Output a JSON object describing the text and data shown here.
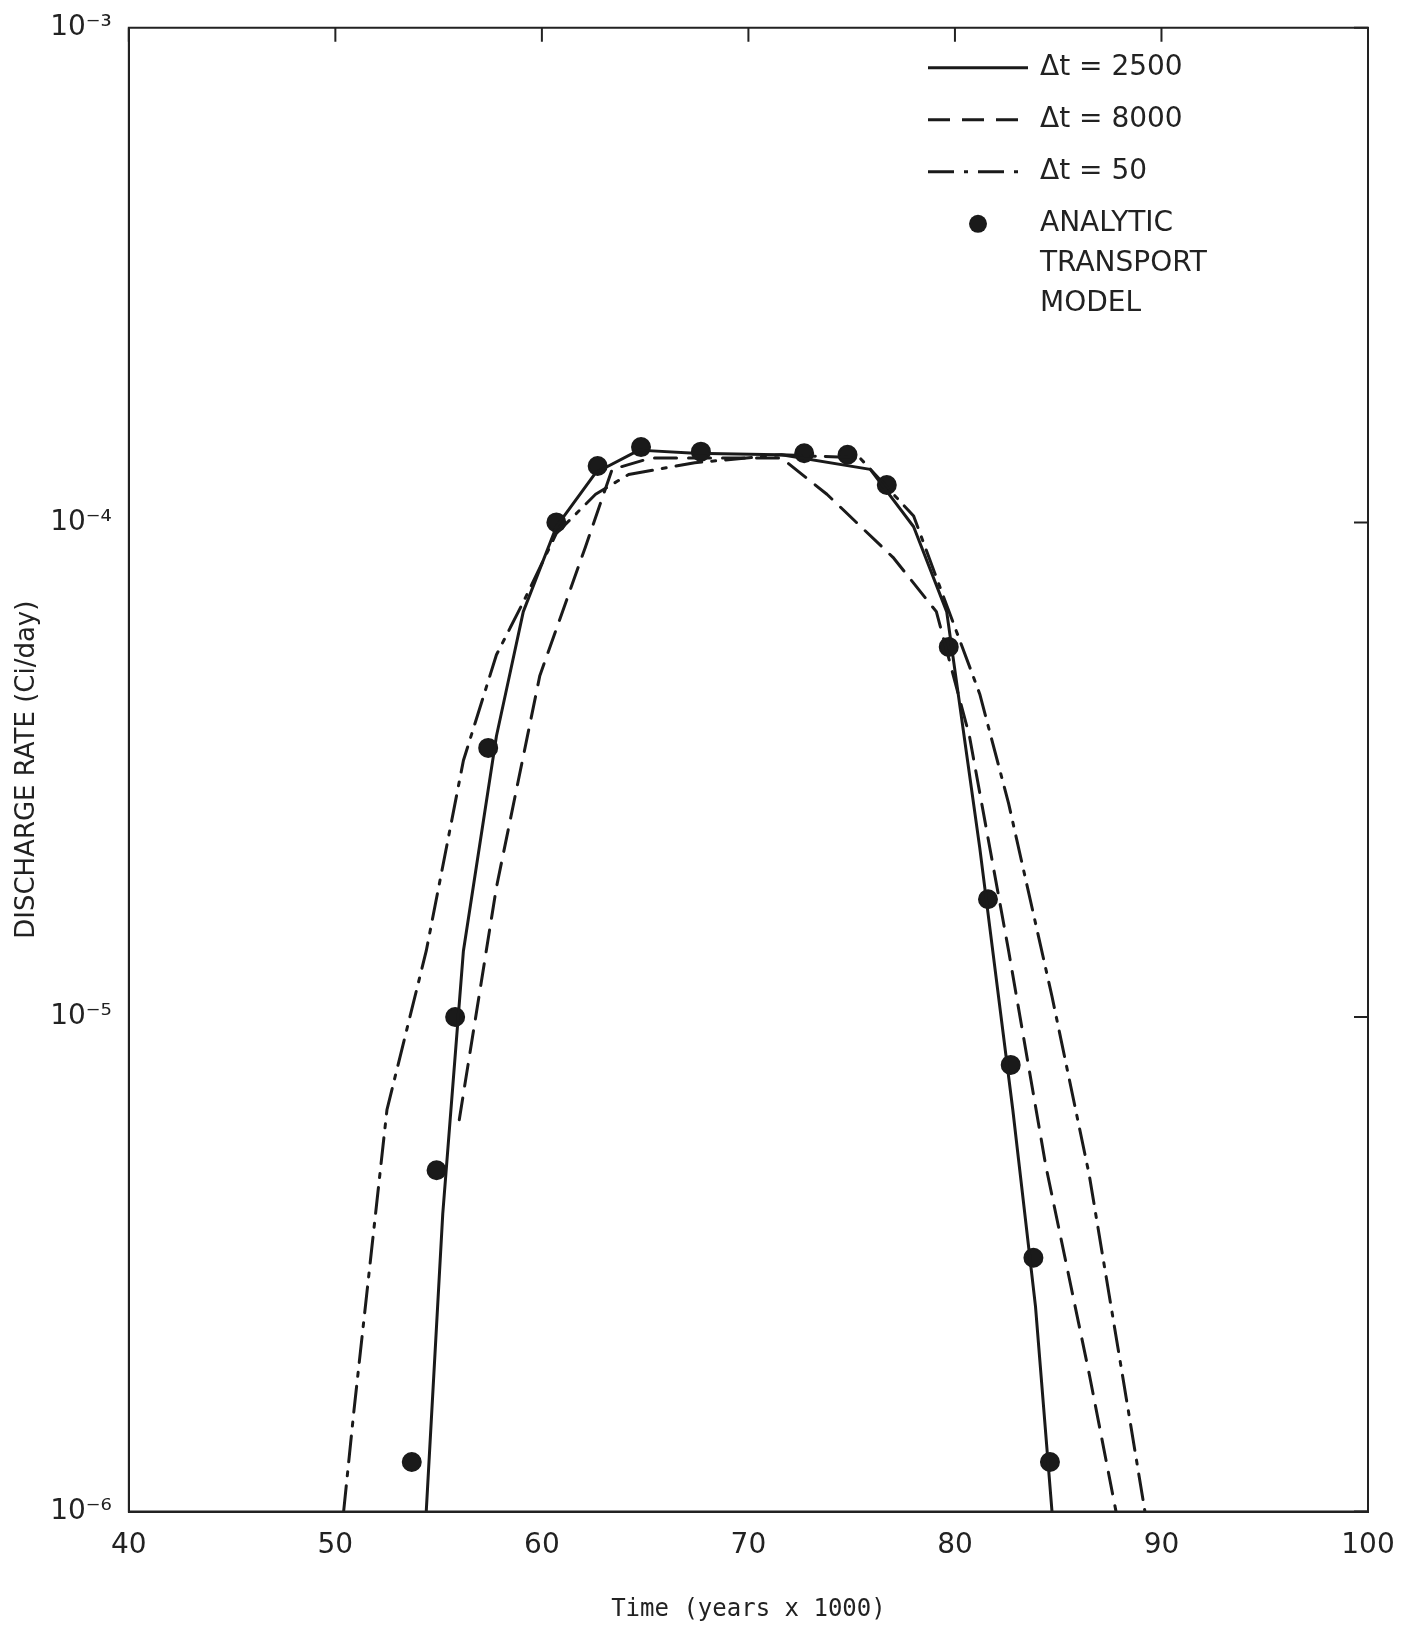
{
  "chart_data": {
    "type": "line",
    "xlabel": "Time (years x 1000)",
    "ylabel": "DISCHARGE RATE (Ci/day)",
    "log": "y",
    "xlim": [
      40,
      100
    ],
    "xticks": [
      40,
      50,
      60,
      70,
      80,
      90,
      100
    ],
    "ylim": [
      1e-06,
      0.001
    ],
    "yticks": [
      {
        "value": 1e-06,
        "label": "10⁻⁶"
      },
      {
        "value": 1e-05,
        "label": "10⁻⁵"
      },
      {
        "value": 0.0001,
        "label": "10⁻⁴"
      },
      {
        "value": 0.001,
        "label": "10⁻³"
      }
    ],
    "grid": false,
    "legend": "top right",
    "series": [
      {
        "name": "Δt = 2500",
        "color": "#1a1a1a",
        "line_style": "solid",
        "marker": "none",
        "x": [
          54.4,
          55.2,
          56.2,
          57.8,
          59.1,
          60.7,
          62.6,
          64.7,
          67.4,
          71.6,
          75.9,
          78.0,
          79.6,
          81.2,
          82.8,
          83.9,
          84.7
        ],
        "values": [
          1e-06,
          4e-06,
          1.36e-05,
          3.7e-05,
          6.6e-05,
          9.8e-05,
          0.000126,
          0.00014,
          0.000138,
          0.000137,
          0.000128,
          9.8e-05,
          6.6e-05,
          2.2e-05,
          6.5e-06,
          2.6e-06,
          1e-06
        ]
      },
      {
        "name": "Δt = 8000",
        "color": "#1a1a1a",
        "line_style": "dashed",
        "marker": "none",
        "x": [
          56.0,
          57.8,
          59.9,
          62.1,
          63.4,
          65.3,
          71.6,
          73.8,
          77.0,
          79.1,
          80.7,
          82.6,
          84.4,
          86.5,
          87.8
        ],
        "values": [
          6.2e-06,
          1.83e-05,
          4.9e-05,
          8.9e-05,
          0.000128,
          0.000135,
          0.000135,
          0.000114,
          8.5e-05,
          6.6e-05,
          3.7e-05,
          1.36e-05,
          5e-06,
          1.9e-06,
          1e-06
        ]
      },
      {
        "name": "Δt = 50",
        "color": "#1a1a1a",
        "line_style": "dashdot",
        "marker": "none",
        "x": [
          50.4,
          50.9,
          52.5,
          54.4,
          56.2,
          57.8,
          59.1,
          60.7,
          62.6,
          64.2,
          67.4,
          71.6,
          75.4,
          78.0,
          79.6,
          81.2,
          82.6,
          84.7,
          86.5,
          88.1,
          89.2
        ],
        "values": [
          1e-06,
          1.6e-06,
          6.5e-06,
          1.36e-05,
          3.3e-05,
          5.4e-05,
          6.9e-05,
          9.5e-05,
          0.000114,
          0.000125,
          0.000132,
          0.000137,
          0.000135,
          0.000103,
          6.8e-05,
          4.5e-05,
          2.7e-05,
          1.1e-05,
          4.8e-06,
          1.9e-06,
          1e-06
        ]
      },
      {
        "name": "ANALYTIC TRANSPORT MODEL",
        "type": "scatter",
        "color": "#1a1a1a",
        "marker": "circle",
        "x": [
          53.7,
          54.9,
          55.8,
          57.4,
          60.7,
          62.7,
          64.8,
          67.7,
          72.7,
          74.8,
          76.7,
          79.7,
          81.6,
          82.7,
          83.8,
          84.6
        ],
        "values": [
          1.26e-06,
          4.9e-06,
          1e-05,
          3.5e-05,
          0.0001,
          0.00013,
          0.000142,
          0.000139,
          0.000138,
          0.000137,
          0.000119,
          5.6e-05,
          1.73e-05,
          8e-06,
          3.26e-06,
          1.26e-06
        ]
      }
    ]
  }
}
